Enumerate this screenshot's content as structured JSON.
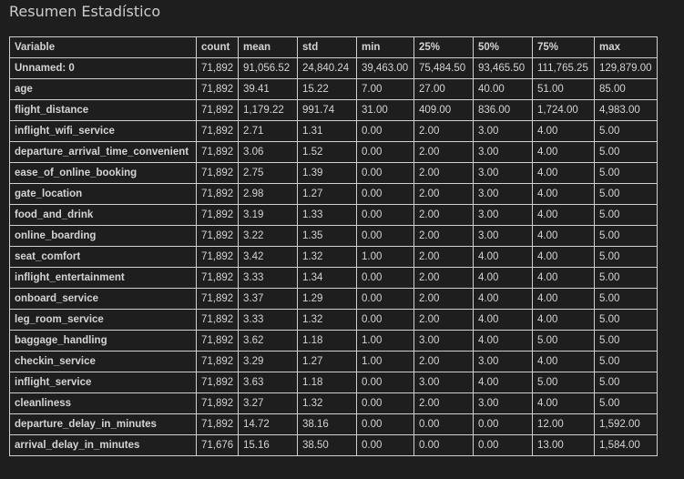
{
  "title": "Resumen Estadístico",
  "table": {
    "columns": [
      "Variable",
      "count",
      "mean",
      "std",
      "min",
      "25%",
      "50%",
      "75%",
      "max"
    ],
    "rows": [
      [
        "Unnamed: 0",
        "71,892",
        "91,056.52",
        "24,840.24",
        "39,463.00",
        "75,484.50",
        "93,465.50",
        "111,765.25",
        "129,879.00"
      ],
      [
        "age",
        "71,892",
        "39.41",
        "15.22",
        "7.00",
        "27.00",
        "40.00",
        "51.00",
        "85.00"
      ],
      [
        "flight_distance",
        "71,892",
        "1,179.22",
        "991.74",
        "31.00",
        "409.00",
        "836.00",
        "1,724.00",
        "4,983.00"
      ],
      [
        "inflight_wifi_service",
        "71,892",
        "2.71",
        "1.31",
        "0.00",
        "2.00",
        "3.00",
        "4.00",
        "5.00"
      ],
      [
        "departure_arrival_time_convenient",
        "71,892",
        "3.06",
        "1.52",
        "0.00",
        "2.00",
        "3.00",
        "4.00",
        "5.00"
      ],
      [
        "ease_of_online_booking",
        "71,892",
        "2.75",
        "1.39",
        "0.00",
        "2.00",
        "3.00",
        "4.00",
        "5.00"
      ],
      [
        "gate_location",
        "71,892",
        "2.98",
        "1.27",
        "0.00",
        "2.00",
        "3.00",
        "4.00",
        "5.00"
      ],
      [
        "food_and_drink",
        "71,892",
        "3.19",
        "1.33",
        "0.00",
        "2.00",
        "3.00",
        "4.00",
        "5.00"
      ],
      [
        "online_boarding",
        "71,892",
        "3.22",
        "1.35",
        "0.00",
        "2.00",
        "3.00",
        "4.00",
        "5.00"
      ],
      [
        "seat_comfort",
        "71,892",
        "3.42",
        "1.32",
        "1.00",
        "2.00",
        "4.00",
        "4.00",
        "5.00"
      ],
      [
        "inflight_entertainment",
        "71,892",
        "3.33",
        "1.34",
        "0.00",
        "2.00",
        "4.00",
        "4.00",
        "5.00"
      ],
      [
        "onboard_service",
        "71,892",
        "3.37",
        "1.29",
        "0.00",
        "2.00",
        "4.00",
        "4.00",
        "5.00"
      ],
      [
        "leg_room_service",
        "71,892",
        "3.33",
        "1.32",
        "0.00",
        "2.00",
        "4.00",
        "4.00",
        "5.00"
      ],
      [
        "baggage_handling",
        "71,892",
        "3.62",
        "1.18",
        "1.00",
        "3.00",
        "4.00",
        "5.00",
        "5.00"
      ],
      [
        "checkin_service",
        "71,892",
        "3.29",
        "1.27",
        "1.00",
        "2.00",
        "3.00",
        "4.00",
        "5.00"
      ],
      [
        "inflight_service",
        "71,892",
        "3.63",
        "1.18",
        "0.00",
        "3.00",
        "4.00",
        "5.00",
        "5.00"
      ],
      [
        "cleanliness",
        "71,892",
        "3.27",
        "1.32",
        "0.00",
        "2.00",
        "3.00",
        "4.00",
        "5.00"
      ],
      [
        "departure_delay_in_minutes",
        "71,892",
        "14.72",
        "38.16",
        "0.00",
        "0.00",
        "0.00",
        "12.00",
        "1,592.00"
      ],
      [
        "arrival_delay_in_minutes",
        "71,676",
        "15.16",
        "38.50",
        "0.00",
        "0.00",
        "0.00",
        "13.00",
        "1,584.00"
      ]
    ]
  },
  "colors": {
    "background": "#1e1e1e",
    "text": "#d4d4d4",
    "border": "#cfcfcf"
  }
}
